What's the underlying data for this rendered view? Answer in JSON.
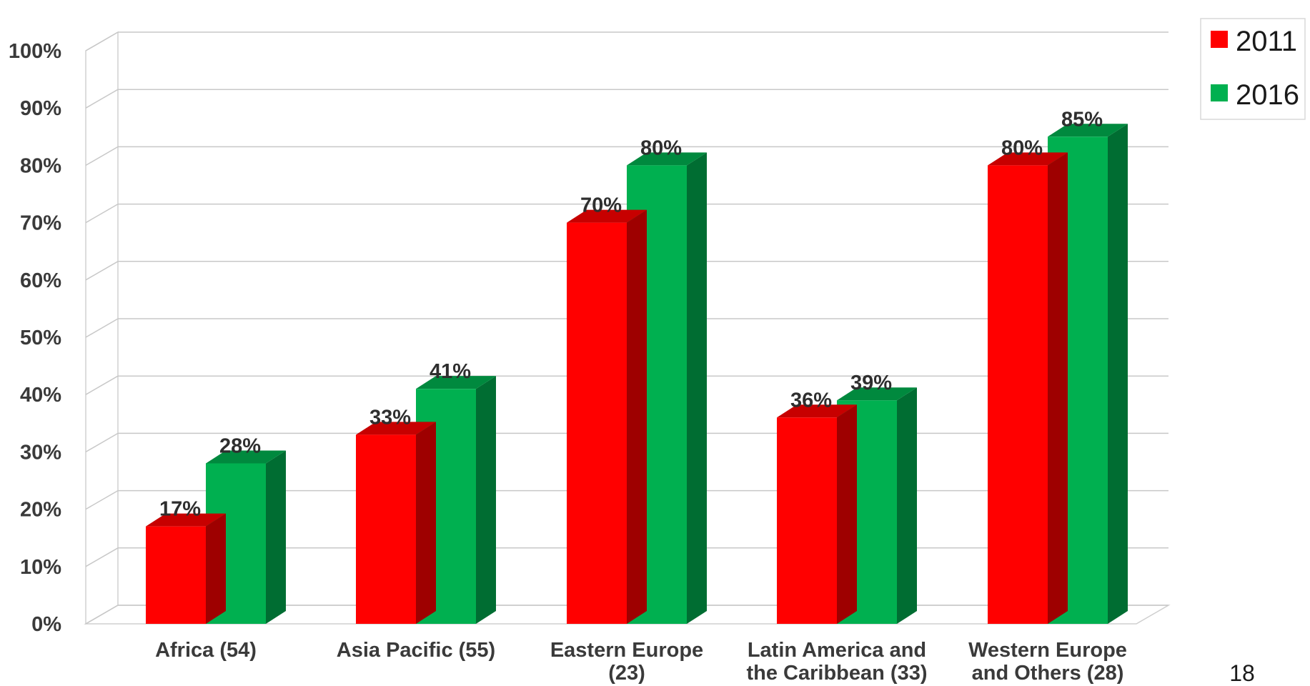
{
  "chart_data": {
    "type": "bar",
    "title": "",
    "xlabel": "",
    "ylabel": "",
    "categories": [
      [
        "Africa (54)"
      ],
      [
        "Asia Pacific (55)"
      ],
      [
        "Eastern Europe",
        "(23)"
      ],
      [
        "Latin America and",
        "the Caribbean (33)"
      ],
      [
        "Western Europe",
        "and Others (28)"
      ]
    ],
    "series": [
      {
        "name": "2011",
        "color": "#ff0000",
        "values": [
          17,
          33,
          70,
          36,
          80
        ]
      },
      {
        "name": "2016",
        "color": "#00b050",
        "values": [
          28,
          41,
          80,
          39,
          85
        ]
      }
    ],
    "ylim": [
      0,
      100
    ],
    "y_ticks": [
      0,
      10,
      20,
      30,
      40,
      50,
      60,
      70,
      80,
      90,
      100
    ],
    "value_suffix": "%",
    "grid": true,
    "legend_position": "top-right",
    "style": "3d-clustered-column"
  },
  "page_number": "18"
}
